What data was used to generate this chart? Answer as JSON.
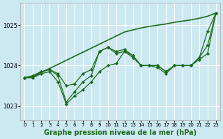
{
  "bg_color": "#cce8f0",
  "grid_color": "#ffffff",
  "line_color": "#1a6b1a",
  "marker_color": "#1a6b1a",
  "xlabel": "Graphe pression niveau de la mer (hPa)",
  "xlabel_fontsize": 7,
  "yticks": [
    1023,
    1024,
    1025
  ],
  "ylim": [
    1022.65,
    1025.55
  ],
  "xlim": [
    -0.5,
    23.5
  ],
  "xticks": [
    0,
    1,
    2,
    3,
    4,
    5,
    6,
    7,
    8,
    9,
    10,
    11,
    12,
    13,
    14,
    15,
    16,
    17,
    18,
    19,
    20,
    21,
    22,
    23
  ],
  "series": [
    {
      "y": [
        1023.7,
        1023.7,
        1023.8,
        1023.85,
        1023.6,
        1023.05,
        1023.25,
        1023.4,
        1023.6,
        1023.85,
        1024.0,
        1024.05,
        1024.35,
        1024.2,
        1024.0,
        1024.0,
        1023.95,
        1023.8,
        1024.0,
        1024.0,
        1024.0,
        1024.15,
        1024.3,
        1025.3
      ],
      "marker": true,
      "lw": 0.9
    },
    {
      "y": [
        1023.7,
        1023.75,
        1023.85,
        1023.9,
        1023.75,
        1023.1,
        1023.35,
        1023.6,
        1023.75,
        1024.35,
        1024.45,
        1024.35,
        1024.4,
        1024.25,
        1024.0,
        1024.0,
        1024.0,
        1023.85,
        1024.0,
        1024.0,
        1024.0,
        1024.2,
        1024.5,
        1025.3
      ],
      "marker": true,
      "lw": 0.9
    },
    {
      "y": [
        1023.7,
        1023.75,
        1023.85,
        1023.9,
        1023.8,
        1023.5,
        1023.55,
        1023.8,
        1023.9,
        1024.35,
        1024.45,
        1024.3,
        1024.35,
        1024.25,
        1024.0,
        1024.0,
        1024.0,
        1023.85,
        1024.0,
        1024.0,
        1024.0,
        1024.2,
        1024.85,
        1025.3
      ],
      "marker": true,
      "lw": 0.9
    },
    {
      "y": [
        1023.7,
        1023.72,
        1023.83,
        1023.93,
        1024.03,
        1024.13,
        1024.23,
        1024.33,
        1024.43,
        1024.53,
        1024.63,
        1024.73,
        1024.83,
        1024.88,
        1024.93,
        1024.97,
        1025.0,
        1025.03,
        1025.07,
        1025.1,
        1025.13,
        1025.17,
        1025.22,
        1025.3
      ],
      "marker": false,
      "lw": 1.2
    }
  ]
}
